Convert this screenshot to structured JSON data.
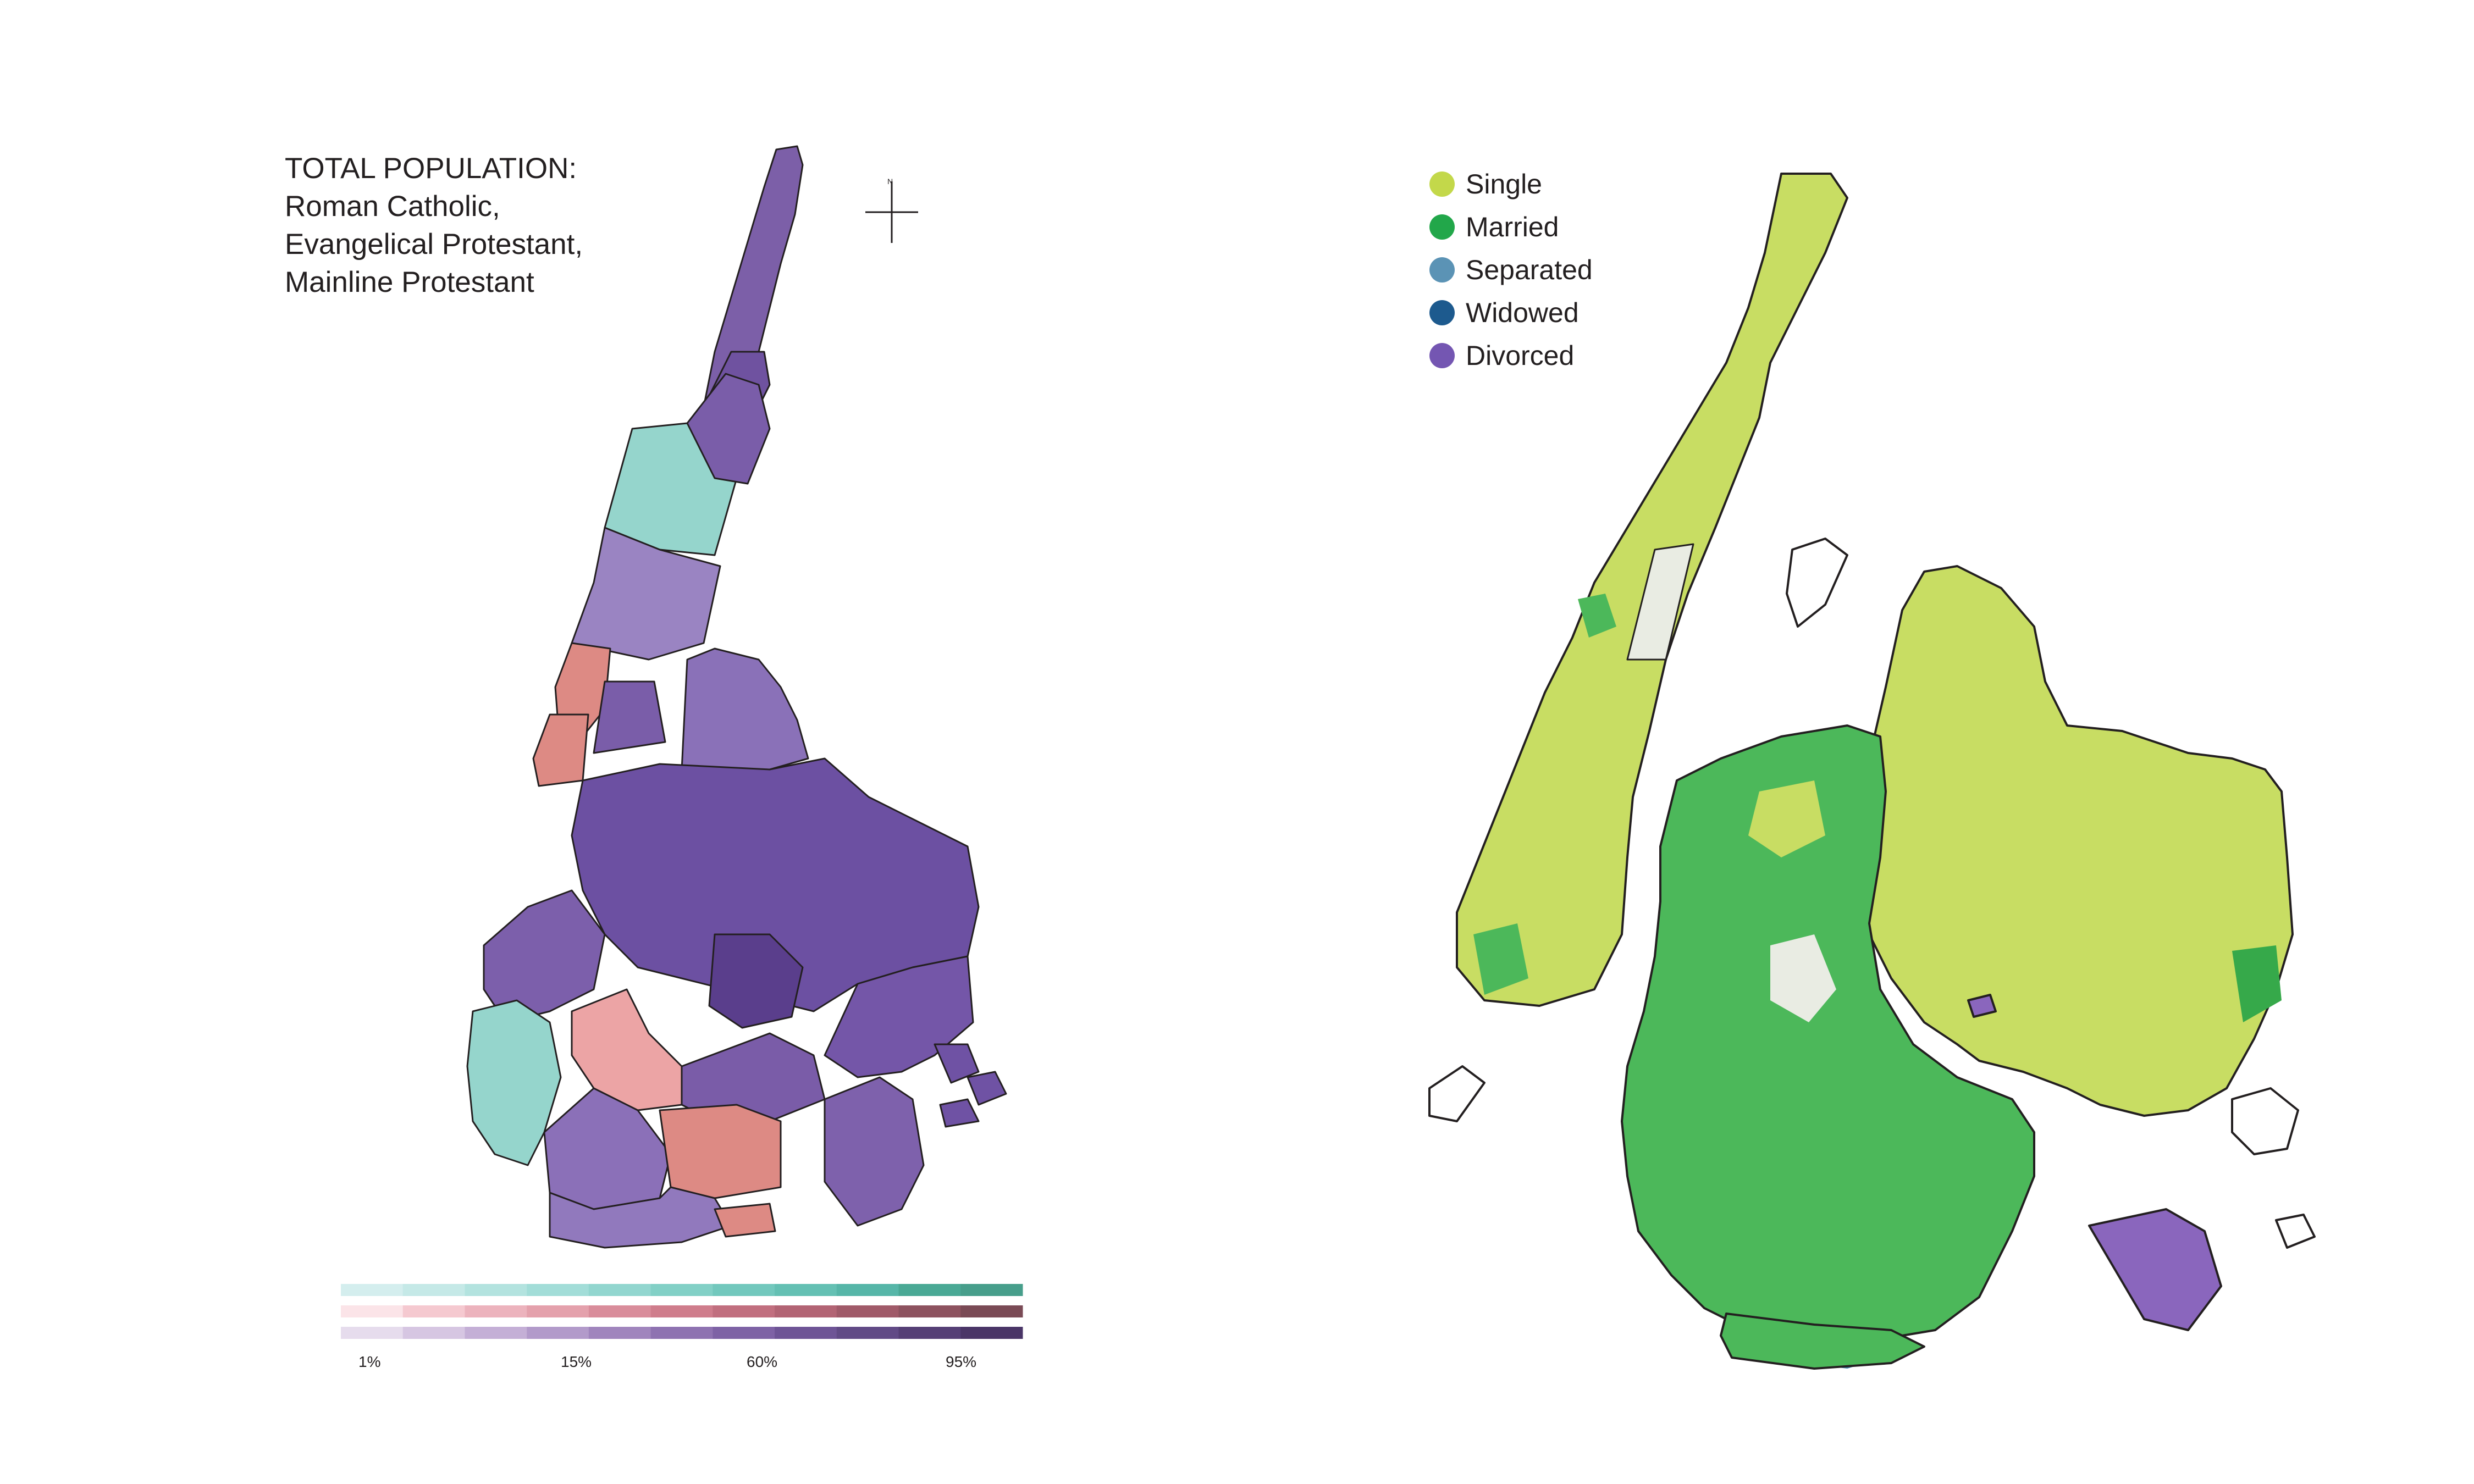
{
  "left_map": {
    "title_lines": [
      "TOTAL POPULATION:",
      "Roman Catholic,",
      "Evangelical Protestant,",
      "Mainline Protestant"
    ],
    "compass_label": "N",
    "scale_labels": [
      "1%",
      "15%",
      "60%",
      "95%"
    ],
    "scale_rows": [
      {
        "name": "Roman Catholic",
        "colors": [
          "#d4eeee",
          "#c5e9e7",
          "#b3e3df",
          "#a2ddd8",
          "#92d6cf",
          "#82d0c6",
          "#72c8bd",
          "#64c0b3",
          "#56b6a8",
          "#4aa995",
          "#479e8b"
        ]
      },
      {
        "name": "Evangelical Protestant",
        "colors": [
          "#fbe4e8",
          "#f5c9d0",
          "#ecb3bd",
          "#e4a1ac",
          "#d98d9b",
          "#cf7d8c",
          "#c16f7f",
          "#b26474",
          "#a05a69",
          "#8d525f",
          "#7a4a55"
        ]
      },
      {
        "name": "Mainline Protestant",
        "colors": [
          "#e6dced",
          "#d6c6e2",
          "#c4afd6",
          "#b29aca",
          "#a085bd",
          "#8e72b1",
          "#7e62a5",
          "#6e5496",
          "#614a86",
          "#553f76",
          "#4a3567"
        ]
      }
    ],
    "colors": {
      "teal": "#95d5cc",
      "salmon": "#dd8a84",
      "pink": "#eca4a5",
      "purple_light": "#a490c8",
      "purple": "#8b6fb5",
      "purple_dark": "#6a4d9e",
      "purple_darker": "#5a3e8c"
    }
  },
  "right_map": {
    "legend": [
      {
        "label": "Single",
        "color": "#c3d84a"
      },
      {
        "label": "Married",
        "color": "#22a74a"
      },
      {
        "label": "Separated",
        "color": "#5b93b5"
      },
      {
        "label": "Widowed",
        "color": "#1d5a8e"
      },
      {
        "label": "Divorced",
        "color": "#7456b2"
      }
    ],
    "colors": {
      "single": "#c8dd63",
      "married": "#4cb85a",
      "married_dark": "#36a94a",
      "park": "#e9ece3",
      "divorced": "#8a66bd"
    }
  }
}
